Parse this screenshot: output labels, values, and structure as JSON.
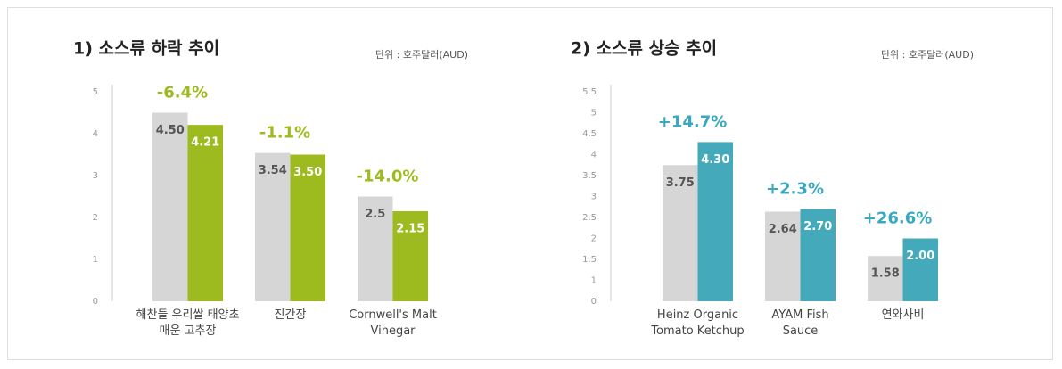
{
  "chart_data": [
    {
      "type": "bar",
      "title": "1) 소스류 하락 추이",
      "unit": "단위 : 호주달러(AUD)",
      "categories": [
        "해찬들 우리쌀 태양초\n매운 고추장",
        "진간장",
        "Cornwell's Malt\nVinegar"
      ],
      "series": [
        {
          "color": "#d6d6d6",
          "values": [
            4.5,
            3.54,
            2.5
          ],
          "value_labels": [
            "4.50",
            "3.54",
            "2.5"
          ]
        },
        {
          "color": "#9dbb1e",
          "values": [
            4.21,
            3.5,
            2.15
          ],
          "value_labels": [
            "4.21",
            "3.50",
            "2.15"
          ]
        }
      ],
      "annotations": [
        "-6.4%",
        "-1.1%",
        "-14.0%"
      ],
      "annotation_color": "#9dbb1e",
      "ylim": [
        0,
        5
      ],
      "yticks": [
        0,
        1,
        2,
        3,
        4,
        5
      ],
      "grid": false
    },
    {
      "type": "bar",
      "title": "2) 소스류 상승 추이",
      "unit": "단위 : 호주달러(AUD)",
      "categories": [
        "Heinz Organic\nTomato Ketchup",
        "AYAM Fish\nSauce",
        "연와사비"
      ],
      "series": [
        {
          "color": "#d6d6d6",
          "values": [
            3.75,
            2.64,
            1.58
          ],
          "value_labels": [
            "3.75",
            "2.64",
            "1.58"
          ]
        },
        {
          "color": "#44a9bb",
          "values": [
            4.3,
            2.7,
            2.0
          ],
          "value_labels": [
            "4.30",
            "2.70",
            "2.00"
          ]
        }
      ],
      "annotations": [
        "+14.7%",
        "+2.3%",
        "+26.6%"
      ],
      "annotation_color": "#3aa8bf",
      "ylim": [
        0.5,
        5.5
      ],
      "yticks": [
        {
          "value": 0.5,
          "label": "0"
        },
        1,
        1.5,
        2,
        2.5,
        3,
        3.5,
        4,
        4.5,
        5,
        5.5
      ],
      "grid": false
    }
  ]
}
